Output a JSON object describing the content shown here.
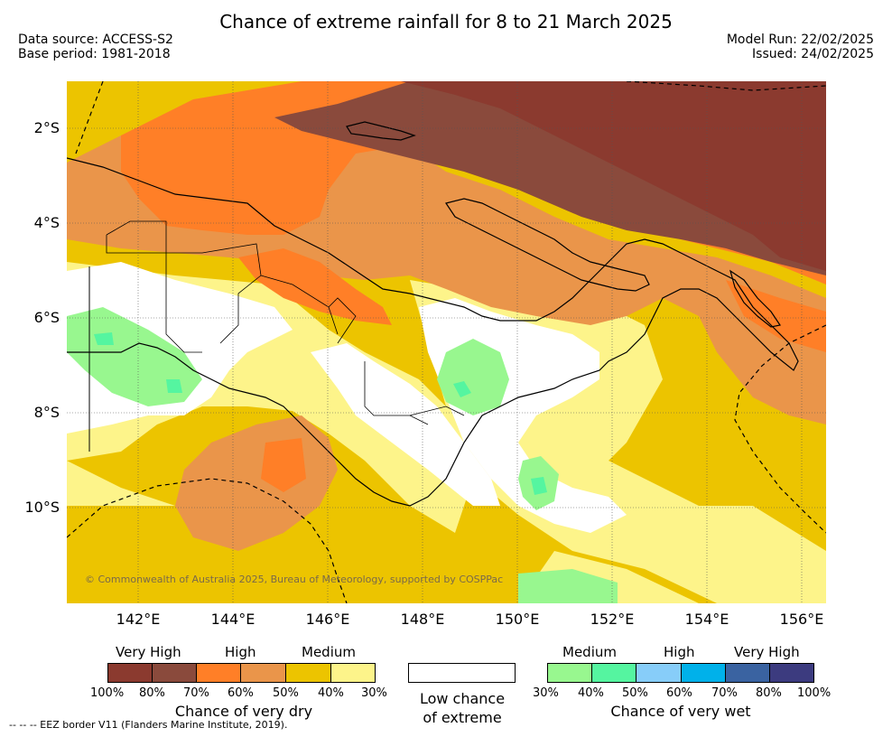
{
  "header": {
    "title": "Chance of extreme rainfall for 8 to 21 March 2025",
    "data_source": "Data source: ACCESS-S2",
    "base_period": "Base period: 1981-2018",
    "model_run": "Model Run: 22/02/2025",
    "issued": "Issued: 24/02/2025"
  },
  "map": {
    "lat_labels": [
      "2°S",
      "4°S",
      "6°S",
      "8°S",
      "10°S"
    ],
    "lon_labels": [
      "142°E",
      "144°E",
      "146°E",
      "148°E",
      "150°E",
      "152°E",
      "154°E",
      "156°E"
    ],
    "copyright": "© Commonwealth of Australia 2025, Bureau of Meteorology, supported by COSPPac"
  },
  "legend": {
    "dry": {
      "levels": [
        "Very High",
        "High",
        "Medium"
      ],
      "colors": [
        "#8b3a2f",
        "#8a4a3c",
        "#ff7f27",
        "#ea954a",
        "#ecc400",
        "#fdf48a"
      ],
      "percents": [
        "100%",
        "80%",
        "70%",
        "60%",
        "50%",
        "40%",
        "30%"
      ],
      "caption": "Chance of very dry"
    },
    "neutral": {
      "caption_line1": "Low chance",
      "caption_line2": "of extreme"
    },
    "wet": {
      "levels": [
        "Medium",
        "High",
        "Very High"
      ],
      "colors": [
        "#98f78f",
        "#55f5a0",
        "#87cdf9",
        "#00b1ea",
        "#3a63a1",
        "#3c3b7f"
      ],
      "percents": [
        "30%",
        "40%",
        "50%",
        "60%",
        "70%",
        "80%",
        "100%"
      ],
      "caption": "Chance of very wet"
    }
  },
  "footer": {
    "eez": "--  --  -- EEZ border V11 (Flanders Marine Institute, 2019)."
  }
}
